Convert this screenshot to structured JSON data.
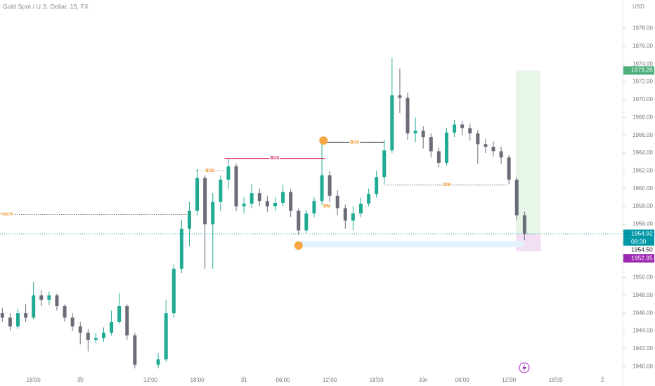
{
  "chart_data": {
    "type": "candlestick",
    "title": "Gold Spot / U.S. Dollar, 15, FX",
    "currency": "USD",
    "up_color": "#22ab94",
    "down_color": "#6a6d78",
    "x": [
      -4,
      -3,
      -2,
      -1,
      0,
      1,
      2,
      3,
      4,
      5,
      6,
      7,
      8,
      9,
      10,
      11,
      12,
      13,
      16,
      17,
      18,
      19,
      20,
      21,
      22,
      23,
      24,
      25,
      26,
      27,
      28,
      29,
      30,
      31,
      32,
      33,
      34,
      35,
      36,
      37,
      38,
      39,
      40,
      41,
      42,
      43,
      44,
      45,
      46,
      47,
      48,
      49,
      50,
      51,
      52,
      53,
      54,
      55,
      56,
      57,
      58,
      59,
      60,
      61,
      62,
      63
    ],
    "open": [
      1946,
      1945.5,
      1944.5,
      1946,
      1945.5,
      1948,
      1947.5,
      1948,
      1946.8,
      1945.5,
      1944.5,
      1943.8,
      1943,
      1943.2,
      1943.8,
      1945,
      1946.8,
      1943.5,
      1940.2,
      1940.8,
      1946,
      1951,
      1955.5,
      1957.5,
      1961.2,
      1956,
      1958.5,
      1961,
      1962.5,
      1958,
      1958.3,
      1959.5,
      1958.6,
      1958,
      1958.4,
      1959.6,
      1957.5,
      1955.3,
      1957.2,
      1958.6,
      1961.5,
      1959.2,
      1957.8,
      1956.4,
      1957.2,
      1958.3,
      1959.4,
      1961.3,
      1964.3,
      1970.5,
      1970.2,
      1966.2,
      1966.5,
      1965.8,
      1964.2,
      1962.9,
      1966.3,
      1967.2,
      1966.8,
      1966.2,
      1965,
      1964.7,
      1964.2,
      1963.5,
      1961,
      1957
    ],
    "high": [
      1946.6,
      1946,
      1946.5,
      1947,
      1949.5,
      1948.6,
      1948.4,
      1948.2,
      1947,
      1946,
      1945,
      1944.2,
      1943.8,
      1944.4,
      1946.3,
      1948.3,
      1947,
      1943.8,
      1941.5,
      1947.5,
      1951.5,
      1956.5,
      1958.5,
      1962.2,
      1961.5,
      1959.5,
      1961.5,
      1963.3,
      1962.8,
      1959,
      1960.5,
      1960,
      1959.2,
      1959,
      1960.4,
      1960,
      1957.8,
      1957.6,
      1959,
      1965.2,
      1962,
      1959.8,
      1958.2,
      1958,
      1959,
      1960,
      1962,
      1965.5,
      1974.7,
      1973.5,
      1970.8,
      1968,
      1967,
      1966.2,
      1964.6,
      1966.8,
      1967.7,
      1967.6,
      1967.3,
      1966.6,
      1965.6,
      1965.3,
      1964.7,
      1963.8,
      1961.3,
      1957.4
    ],
    "low": [
      1945,
      1944,
      1944.2,
      1945,
      1945.3,
      1946.8,
      1946.9,
      1946.3,
      1945,
      1944,
      1942.5,
      1941.7,
      1942.6,
      1942.8,
      1943.5,
      1944.8,
      1943,
      1939.8,
      1939.8,
      1940.5,
      1945.5,
      1950.5,
      1953.5,
      1957,
      1951,
      1951,
      1957.5,
      1960,
      1957.5,
      1957.2,
      1957.8,
      1958,
      1957.4,
      1957.5,
      1958,
      1956.8,
      1954.8,
      1955,
      1956.8,
      1958.2,
      1958.5,
      1957,
      1955.5,
      1955.3,
      1956.8,
      1958,
      1959,
      1960.4,
      1964,
      1968.5,
      1965.5,
      1965.2,
      1964.5,
      1963.5,
      1962.4,
      1962.6,
      1965.8,
      1966,
      1965.4,
      1962.8,
      1964,
      1963.6,
      1962.8,
      1960.5,
      1956.5,
      1954.2
    ],
    "close": [
      1945.5,
      1944.5,
      1946,
      1945.5,
      1948,
      1947.5,
      1948,
      1946.8,
      1945.5,
      1944.5,
      1943.8,
      1943,
      1943.2,
      1943.8,
      1945,
      1946.8,
      1943.5,
      1940.2,
      1940.8,
      1946,
      1951,
      1955.5,
      1957.5,
      1961.2,
      1956,
      1958.5,
      1961,
      1962.5,
      1958,
      1958.3,
      1959.5,
      1958.6,
      1958,
      1958.4,
      1959.6,
      1957.5,
      1955.3,
      1957.2,
      1958.6,
      1961.5,
      1959.2,
      1957.8,
      1956.4,
      1957.2,
      1958.3,
      1959.4,
      1961.3,
      1964.3,
      1970.5,
      1970.2,
      1966.2,
      1966.5,
      1965.8,
      1964.2,
      1962.9,
      1966.3,
      1967.2,
      1966.8,
      1966.2,
      1965,
      1964.7,
      1964.2,
      1963.5,
      1961,
      1957,
      1954.9
    ],
    "xlim": [
      -4.3,
      75.5
    ],
    "xticks": [
      {
        "value": 0,
        "label": "18:00"
      },
      {
        "value": 6,
        "label": "30"
      },
      {
        "value": 15,
        "label": "12:00"
      },
      {
        "value": 21,
        "label": "18:00"
      },
      {
        "value": 27,
        "label": "31"
      },
      {
        "value": 32,
        "label": "06:00"
      },
      {
        "value": 38,
        "label": "12:00"
      },
      {
        "value": 44,
        "label": "18:00"
      },
      {
        "value": 50,
        "label": "Jun"
      },
      {
        "value": 55,
        "label": "06:00"
      },
      {
        "value": 61,
        "label": "12:00"
      },
      {
        "value": 67,
        "label": "18:00"
      },
      {
        "value": 73,
        "label": "2"
      }
    ],
    "ylim": [
      1938.6,
      1981.2
    ],
    "yticks": [
      {
        "value": 1940,
        "label": "1940.00"
      },
      {
        "value": 1942,
        "label": "1942.00"
      },
      {
        "value": 1944,
        "label": "1944.00"
      },
      {
        "value": 1946,
        "label": "1946.00"
      },
      {
        "value": 1948,
        "label": "1948.00"
      },
      {
        "value": 1950,
        "label": "1950.00"
      },
      {
        "value": 1952,
        "label": "1952.00"
      },
      {
        "value": 1956,
        "label": "1956.00"
      },
      {
        "value": 1958,
        "label": "1958.00"
      },
      {
        "value": 1960,
        "label": "1960.00"
      },
      {
        "value": 1962,
        "label": "1962.00"
      },
      {
        "value": 1964,
        "label": "1964.00"
      },
      {
        "value": 1966,
        "label": "1966.00"
      },
      {
        "value": 1968,
        "label": "1968.00"
      },
      {
        "value": 1970,
        "label": "1970.00"
      },
      {
        "value": 1972,
        "label": "1972.00"
      },
      {
        "value": 1974,
        "label": "1974.00"
      },
      {
        "value": 1976,
        "label": "1976.00"
      },
      {
        "value": 1978,
        "label": "1978.00"
      }
    ],
    "zones": [
      {
        "x": [
          61.9,
          65.1
        ],
        "y": [
          1954.92,
          1973.28
        ],
        "color": "#e8f5e9"
      },
      {
        "x": [
          61.9,
          65.1
        ],
        "y": [
          1952.95,
          1954.92
        ],
        "color": "#f3e0f5"
      },
      {
        "x": [
          34.0,
          62.9
        ],
        "y": [
          1953.4,
          1954.1
        ],
        "color": "#e3f2fd"
      }
    ],
    "lines": [
      {
        "label": "HoCH",
        "value": 1957.1,
        "x": [
          -4.3,
          19.9
        ],
        "color": "#777777",
        "label_color": "#f0932b",
        "label_at": "start",
        "dash": true
      },
      {
        "label": "BOS",
        "value": 1962.0,
        "x": [
          20.8,
          24.5
        ],
        "color": "#9e9e9e",
        "label_color": "#f0932b",
        "label_at": "middle",
        "dash": true
      },
      {
        "label": "BOS",
        "value": 1963.4,
        "x": [
          24.5,
          37.4
        ],
        "color": "#d81b60",
        "label_color": "#d81b60",
        "label_at": "middle",
        "dash": false
      },
      {
        "label": "BOS",
        "value": 1965.2,
        "x": [
          37.4,
          45.0
        ],
        "color": "#444444",
        "label_color": "#f0932b",
        "label_at": "middle",
        "dash": false
      },
      {
        "label": "IDM",
        "value": 1960.4,
        "x": [
          45.3,
          60.8
        ],
        "color": "#777777",
        "label_color": "#f0932b",
        "label_at": "middle",
        "dash": true
      }
    ],
    "texts": [
      {
        "label": "IDM",
        "x": 37.6,
        "y": 1958.0,
        "color": "#f0932b"
      }
    ],
    "points": [
      {
        "x": 37.2,
        "y": 1965.4,
        "color": "#f5a742"
      },
      {
        "x": 34.0,
        "y": 1953.6,
        "color": "#f5a742"
      }
    ],
    "last_price": 1954.92,
    "price_labels": [
      {
        "value": 1973.28,
        "label": "1973.28",
        "color": "#4caf7a"
      },
      {
        "value": 1954.92,
        "label": "1954.92",
        "color": "#0097a7"
      },
      {
        "value": 1954.5,
        "label": "1954.50",
        "color": "#ffffff"
      },
      {
        "value": 1952.95,
        "label": "1952.95",
        "color": "#9c27b0"
      }
    ],
    "countdown": "08:30"
  }
}
